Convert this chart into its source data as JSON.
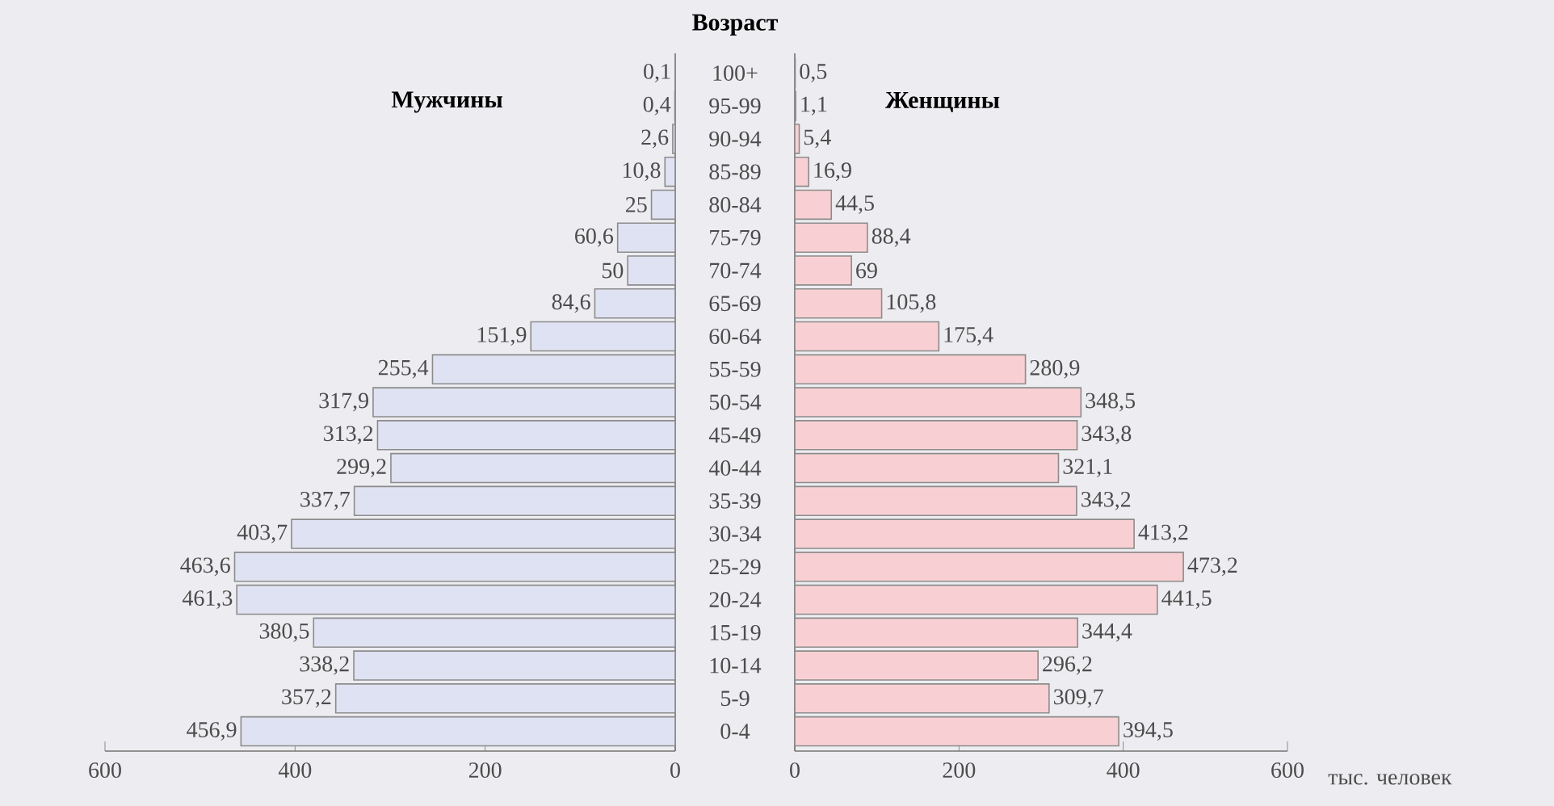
{
  "chart_data": [
    {
      "type": "bar",
      "orientation": "horizontal",
      "ylabel": "Возраст",
      "categories": [
        "100+",
        "95-99",
        "90-94",
        "85-89",
        "80-84",
        "75-79",
        "70-74",
        "65-69",
        "60-64",
        "55-59",
        "50-54",
        "45-49",
        "40-44",
        "35-39",
        "30-34",
        "25-29",
        "20-24",
        "15-19",
        "10-14",
        "5-9",
        "0-4"
      ],
      "series": [
        {
          "name": "Мужчины",
          "color": "#dfe2f2",
          "values": [
            0.1,
            0.4,
            2.6,
            10.8,
            25,
            60.6,
            50,
            84.6,
            151.9,
            255.4,
            317.9,
            313.2,
            299.2,
            337.7,
            403.7,
            463.6,
            461.3,
            380.5,
            338.2,
            357.2,
            456.9
          ],
          "value_labels": [
            "0,1",
            "0,4",
            "2,6",
            "10,8",
            "25",
            "60,6",
            "50",
            "84,6",
            "151,9",
            "255,4",
            "317,9",
            "313,2",
            "299,2",
            "337,7",
            "403,7",
            "463,6",
            "461,3",
            "380,5",
            "338,2",
            "357,2",
            "456,9"
          ]
        }
      ],
      "xlim": [
        600,
        0
      ],
      "xticks": [
        600,
        400,
        200,
        0
      ]
    },
    {
      "type": "bar",
      "orientation": "horizontal",
      "xlabel": "тыс. человек",
      "categories": [
        null,
        null,
        null,
        null,
        null,
        null,
        null,
        null,
        null,
        null,
        null,
        null,
        null,
        null,
        null,
        null,
        null,
        null,
        null,
        null,
        null
      ],
      "series": [
        {
          "name": "Женщины",
          "color": "#f8d0d3",
          "values": [
            0.5,
            1.1,
            5.4,
            16.9,
            44.5,
            88.4,
            69,
            105.8,
            175.4,
            280.9,
            348.5,
            343.8,
            321.1,
            343.2,
            413.2,
            473.2,
            441.5,
            344.4,
            296.2,
            309.7,
            394.5
          ],
          "value_labels": [
            "0,5",
            "1,1",
            "5,4",
            "16,9",
            "44,5",
            "88,4",
            "69",
            "105,8",
            "175,4",
            "280,9",
            "348,5",
            "343,8",
            "321,1",
            "343,2",
            "413,2",
            "473,2",
            "441,5",
            "344,4",
            "296,2",
            "309,7",
            "394,5"
          ]
        }
      ],
      "xlim": [
        0,
        600
      ],
      "xticks": [
        0,
        200,
        400,
        600
      ],
      "tick_labels": "x"
    }
  ]
}
